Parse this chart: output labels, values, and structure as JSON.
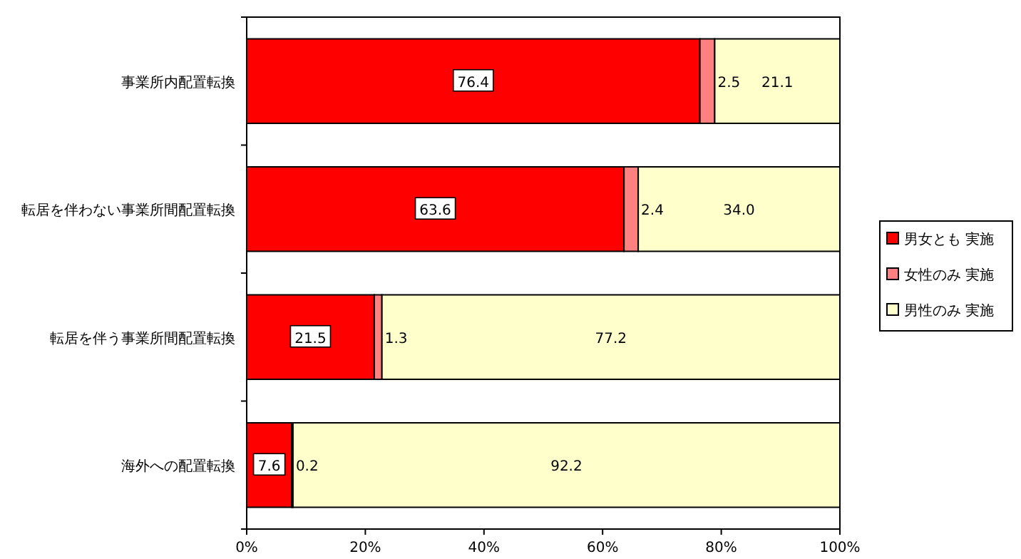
{
  "chart_data": {
    "type": "bar",
    "orientation": "horizontal",
    "stacked": true,
    "categories": [
      "事業所内配置転換",
      "転居を伴わない事業所間配置転換",
      "転居を伴う事業所間配置転換",
      "海外への配置転換"
    ],
    "series": [
      {
        "name": "男女とも 実施",
        "color": "#ff0000",
        "values": [
          76.4,
          63.6,
          21.5,
          7.6
        ],
        "value_labels": [
          "76.4",
          "63.6",
          "21.5",
          "7.6"
        ]
      },
      {
        "name": "女性のみ 実施",
        "color": "#ff8080",
        "values": [
          2.5,
          2.4,
          1.3,
          0.2
        ],
        "value_labels": [
          "2.5",
          "2.4",
          "1.3",
          "0.2"
        ]
      },
      {
        "name": "男性のみ 実施",
        "color": "#ffffcc",
        "values": [
          21.1,
          34.0,
          77.2,
          92.2
        ],
        "value_labels": [
          "21.1",
          "34.0",
          "77.2",
          "92.2"
        ]
      }
    ],
    "xlim": [
      0,
      100
    ],
    "xticks": [
      {
        "value": 0,
        "label": "0%"
      },
      {
        "value": 20,
        "label": "20%"
      },
      {
        "value": 40,
        "label": "40%"
      },
      {
        "value": 60,
        "label": "60%"
      },
      {
        "value": 80,
        "label": "80%"
      },
      {
        "value": 100,
        "label": "100%"
      }
    ],
    "grid": false,
    "legend": "right"
  }
}
